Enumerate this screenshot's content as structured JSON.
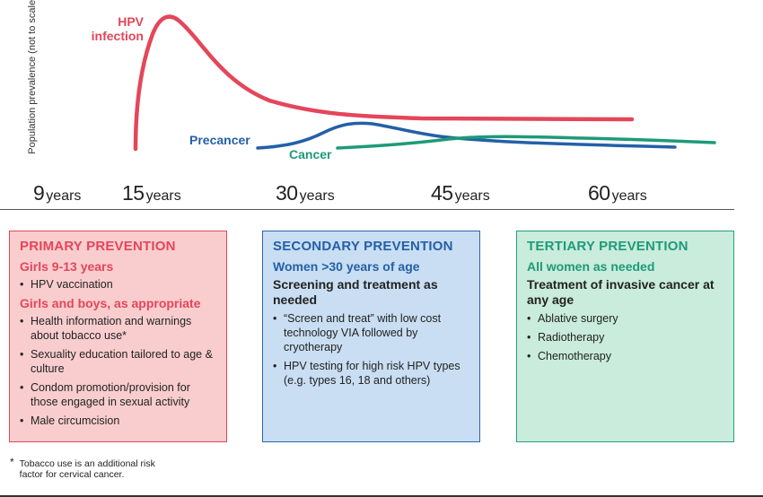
{
  "y_axis_label": "Population prevalence (not to scale)",
  "curves": [
    {
      "name": "HPV\ninfection",
      "color": "#e4465a",
      "key": "hpv"
    },
    {
      "name": "Precancer",
      "color": "#2360a8",
      "key": "precancer"
    },
    {
      "name": "Cancer",
      "color": "#1e9a78",
      "key": "cancer"
    }
  ],
  "ages": [
    {
      "num": "9",
      "unit": "years"
    },
    {
      "num": "15",
      "unit": "years"
    },
    {
      "num": "30",
      "unit": "years"
    },
    {
      "num": "45",
      "unit": "years"
    },
    {
      "num": "60",
      "unit": "years"
    }
  ],
  "primary": {
    "title": "PRIMARY PREVENTION",
    "group1": "Girls 9-13 years",
    "group1_items": [
      "HPV vaccination"
    ],
    "group2": "Girls and boys, as appropriate",
    "group2_items": [
      "Health information and warnings about tobacco use*",
      "Sexuality education tailored to age & culture",
      "Condom promotion/provision for those engaged in sexual activity",
      "Male circumcision"
    ]
  },
  "secondary": {
    "title": "SECONDARY PREVENTION",
    "group": "Women >30 years of age",
    "subhead": "Screening and treatment as needed",
    "items": [
      "“Screen and treat” with low cost technology VIA followed by cryotherapy",
      "HPV testing for high risk HPV types (e.g. types 16, 18 and others)"
    ]
  },
  "tertiary": {
    "title": "TERTIARY PREVENTION",
    "group": "All women as needed",
    "subhead": "Treatment of invasive cancer at any age",
    "items": [
      "Ablative surgery",
      "Radiotherapy",
      "Chemotherapy"
    ]
  },
  "footnote": {
    "star": "*",
    "text": "Tobacco use is an additional risk factor for cervical cancer."
  }
}
